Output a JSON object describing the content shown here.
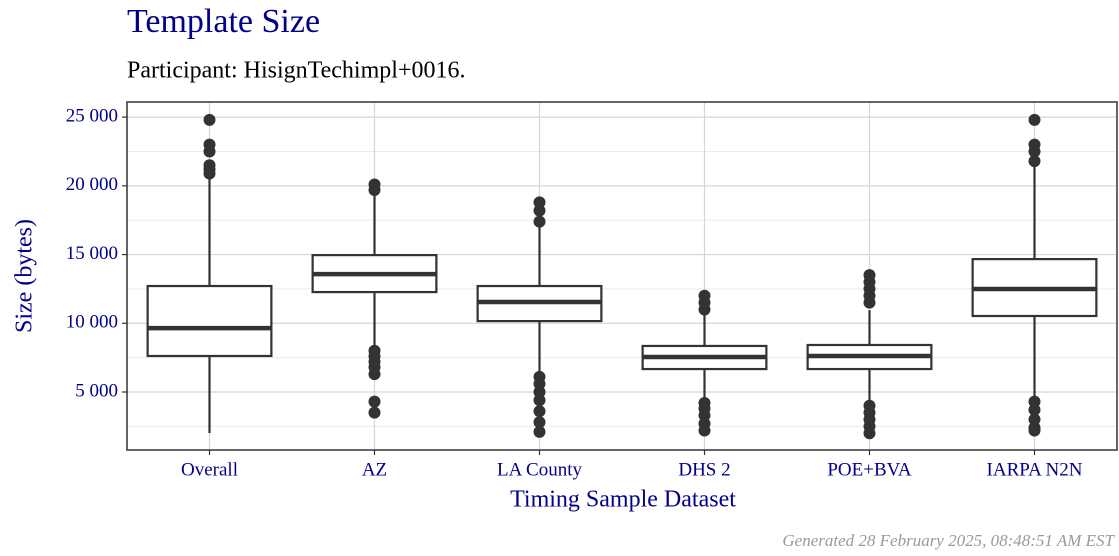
{
  "chart_data": {
    "type": "box",
    "title": "Template Size",
    "subtitle": "Participant: HisignTechimpl+0016.",
    "x_label": "Timing Sample Dataset",
    "y_label": "Size (bytes)",
    "categories": [
      "Overall",
      "AZ",
      "LA County",
      "DHS 2",
      "POE+BVA",
      "IARPA N2N"
    ],
    "boxes": [
      {
        "low": 2020,
        "q1": 7620,
        "median": 9650,
        "q3": 12710,
        "high": 20780,
        "outliers": [
          20900,
          21200,
          21500,
          22500,
          23000,
          24800
        ]
      },
      {
        "low": 8200,
        "q1": 12270,
        "median": 13580,
        "q3": 14960,
        "high": 19550,
        "outliers": [
          19700,
          20100,
          8000,
          7600,
          7200,
          6800,
          6300,
          4300,
          3500
        ]
      },
      {
        "low": 6450,
        "q1": 10160,
        "median": 11550,
        "q3": 12710,
        "high": 17150,
        "outliers": [
          17400,
          18200,
          18800,
          6100,
          5600,
          5000,
          4400,
          3600,
          2800,
          2100
        ]
      },
      {
        "low": 4560,
        "q1": 6670,
        "median": 7550,
        "q3": 8350,
        "high": 10600,
        "outliers": [
          11000,
          11500,
          12000,
          4200,
          3800,
          3300,
          2700,
          2200
        ]
      },
      {
        "low": 4420,
        "q1": 6670,
        "median": 7620,
        "q3": 8420,
        "high": 10960,
        "outliers": [
          11500,
          12000,
          12500,
          13000,
          13500,
          4000,
          3500,
          3000,
          2500,
          2000
        ]
      },
      {
        "low": 4560,
        "q1": 10530,
        "median": 12490,
        "q3": 14670,
        "high": 21500,
        "outliers": [
          21800,
          22500,
          23000,
          24800,
          4300,
          3700,
          3000,
          2400,
          2200
        ]
      }
    ],
    "color": "#333333",
    "ylim": [
      780,
      26100
    ],
    "yticks": [
      {
        "value": 5000,
        "label": "5 000"
      },
      {
        "value": 10000,
        "label": "10 000"
      },
      {
        "value": 15000,
        "label": "15 000"
      },
      {
        "value": 20000,
        "label": "20 000"
      },
      {
        "value": 25000,
        "label": "25 000"
      }
    ],
    "minor_yticks": [
      2500,
      7500,
      12500,
      17500,
      22500
    ],
    "grid": true
  },
  "footer": "Generated 28 February 2025, 08:48:51 AM EST"
}
